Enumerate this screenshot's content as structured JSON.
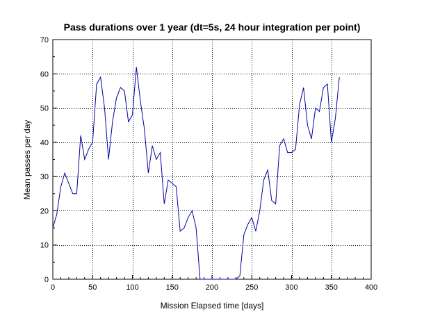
{
  "chart_data": {
    "type": "line",
    "title": "Pass durations over 1 year (dt=5s, 24 hour integration per point)",
    "xlabel": "Mission Elapsed time [days]",
    "ylabel": "Mean passes per day",
    "xlim": [
      0,
      400
    ],
    "ylim": [
      0,
      70
    ],
    "x_ticks": [
      0,
      50,
      100,
      150,
      200,
      250,
      300,
      350,
      400
    ],
    "y_ticks": [
      0,
      10,
      20,
      30,
      40,
      50,
      60,
      70
    ],
    "x_tick_labels": [
      "0",
      "50",
      "100",
      "150",
      "200",
      "250",
      "300",
      "350",
      "400"
    ],
    "y_tick_labels": [
      "0",
      "10",
      "20",
      "30",
      "40",
      "50",
      "60",
      "70"
    ],
    "grid": true,
    "legend": "none",
    "series": [
      {
        "color": "#0000a0",
        "x": [
          0,
          5,
          10,
          15,
          20,
          25,
          30,
          35,
          40,
          45,
          50,
          55,
          60,
          65,
          70,
          75,
          80,
          85,
          90,
          95,
          100,
          105,
          110,
          115,
          120,
          125,
          130,
          135,
          140,
          145,
          150,
          155,
          160,
          165,
          170,
          175,
          180,
          185,
          190,
          195,
          200,
          205,
          210,
          215,
          220,
          225,
          230,
          235,
          240,
          245,
          250,
          255,
          260,
          265,
          270,
          275,
          280,
          285,
          290,
          295,
          300,
          305,
          310,
          315,
          320,
          325,
          330,
          335,
          340,
          345,
          350,
          355,
          360
        ],
        "y": [
          15,
          19,
          27,
          31,
          28,
          25,
          25,
          42,
          35,
          38,
          40,
          57,
          59,
          50,
          35,
          46,
          53,
          56,
          55,
          46,
          48,
          62,
          52,
          44,
          31,
          39,
          35,
          37,
          22,
          29,
          28,
          27,
          14,
          15,
          18,
          20,
          15,
          0,
          0,
          0,
          0,
          0,
          0,
          0,
          0,
          0,
          0,
          1,
          13,
          16,
          18,
          14,
          20,
          29,
          32,
          23,
          22,
          39,
          41,
          37,
          37,
          38,
          51,
          56,
          45,
          41,
          50,
          49,
          56,
          57,
          40,
          47,
          59
        ]
      }
    ]
  }
}
